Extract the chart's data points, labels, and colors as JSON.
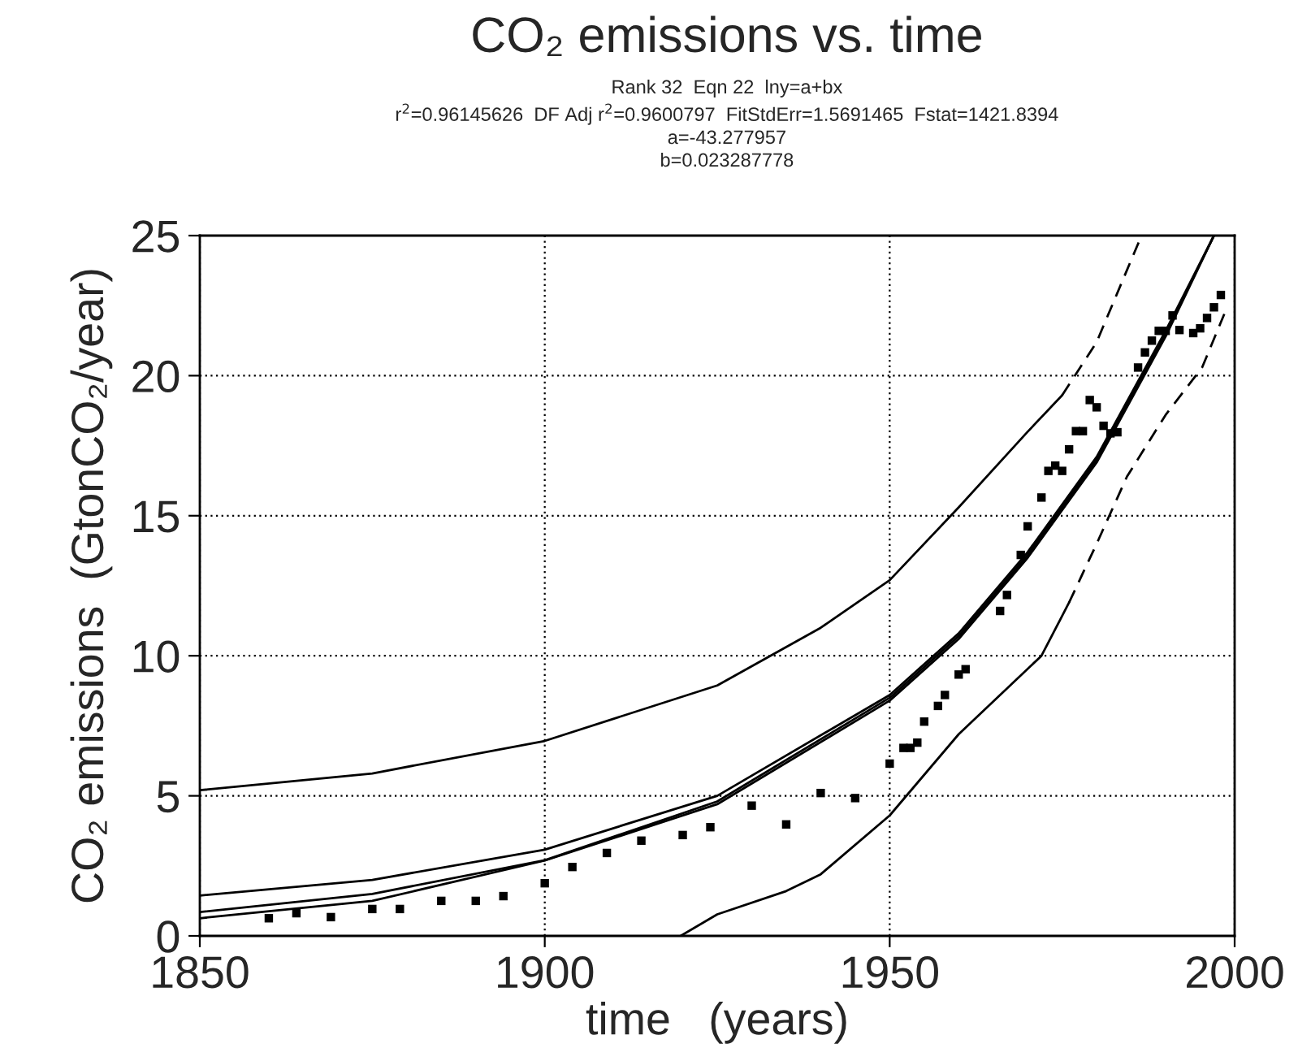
{
  "chart_data": {
    "type": "scatter",
    "title": "CO₂ emissions vs. time",
    "subtitle": "Rank 32  Eqn 22  lny=a+bx\nr$^{2}$=0.96145626  DF Adj r$^{2}$=0.9600797  FitStdErr=1.5691465  Fstat=1421.8394\na=-43.277957\nb=0.023287778",
    "xlabel": "time   (years)",
    "ylabel": "CO₂ emissions  (GtonCO₂/year)",
    "xlim": [
      1850,
      2000
    ],
    "xticks": [
      1850,
      1900,
      1950,
      2000
    ],
    "ylim": [
      0,
      25
    ],
    "yticks": [
      0,
      5,
      10,
      15,
      20,
      25
    ],
    "grid": true,
    "series": [
      {
        "color": "#000000",
        "marker": "square",
        "x": [
          1860,
          1864,
          1869,
          1875,
          1879,
          1885,
          1890,
          1894,
          1900,
          1904,
          1909,
          1914,
          1920,
          1924,
          1930,
          1935,
          1940,
          1945,
          1950,
          1952,
          1953,
          1954,
          1955,
          1957,
          1958,
          1960,
          1961,
          1966,
          1967,
          1969,
          1970,
          1972,
          1973,
          1974,
          1975,
          1976,
          1977,
          1978,
          1979,
          1980,
          1981,
          1982,
          1983,
          1986,
          1987,
          1988,
          1989,
          1990,
          1991,
          1992,
          1994,
          1995,
          1996,
          1997,
          1998
        ],
        "values": [
          0.63,
          0.81,
          0.67,
          0.96,
          0.96,
          1.25,
          1.25,
          1.42,
          1.88,
          2.46,
          2.96,
          3.4,
          3.6,
          3.88,
          4.65,
          3.98,
          5.1,
          4.92,
          6.15,
          6.71,
          6.71,
          6.9,
          7.65,
          8.21,
          8.6,
          9.33,
          9.52,
          11.6,
          12.17,
          13.6,
          14.62,
          15.65,
          16.6,
          16.79,
          16.6,
          17.37,
          18.02,
          18.02,
          19.13,
          18.87,
          18.21,
          17.94,
          17.98,
          20.29,
          20.83,
          21.25,
          21.6,
          21.6,
          22.15,
          21.63,
          21.52,
          21.69,
          22.06,
          22.44,
          22.88
        ]
      },
      {
        "type": "line",
        "color": "#000000",
        "line_style": "solid",
        "x": [
          1850,
          1875,
          1900,
          1925,
          1950,
          1960,
          1970,
          1980,
          1990,
          1997
        ],
        "values": [
          0.85,
          1.5,
          2.7,
          4.8,
          8.5,
          10.7,
          13.6,
          17.0,
          21.5,
          25
        ]
      },
      {
        "type": "line",
        "color": "#000000",
        "line_style": "solid",
        "x": [
          1850,
          1875,
          1900,
          1925,
          1950,
          1960,
          1970,
          1980,
          1990,
          1997
        ],
        "values": [
          1.44,
          2.0,
          3.08,
          5.0,
          8.6,
          10.8,
          13.7,
          17.1,
          21.6,
          25
        ]
      },
      {
        "type": "line",
        "color": "#000000",
        "line_style": "solid",
        "x": [
          1850,
          1875,
          1900,
          1925,
          1950,
          1960,
          1970,
          1980,
          1990,
          1997
        ],
        "values": [
          0.63,
          1.25,
          2.69,
          4.7,
          8.4,
          10.6,
          13.5,
          16.9,
          21.4,
          25
        ]
      },
      {
        "type": "line",
        "color": "#000000",
        "line_style": "solid",
        "x": [
          1850,
          1875,
          1900,
          1925,
          1940,
          1950,
          1960,
          1970,
          1975
        ],
        "values": [
          5.2,
          5.8,
          6.96,
          8.94,
          11.0,
          12.7,
          15.3,
          18.0,
          19.3
        ]
      },
      {
        "type": "line",
        "color": "#000000",
        "line_style": "dashed",
        "x": [
          1975,
          1980,
          1986.5
        ],
        "values": [
          19.3,
          21.2,
          25
        ]
      },
      {
        "type": "line",
        "color": "#000000",
        "line_style": "solid",
        "x": [
          1919.7,
          1925,
          1935,
          1940,
          1950,
          1960,
          1972,
          1976
        ],
        "values": [
          0,
          0.77,
          1.6,
          2.2,
          4.3,
          7.2,
          10.0,
          11.9
        ]
      },
      {
        "type": "line",
        "color": "#000000",
        "line_style": "dashed",
        "x": [
          1976,
          1980,
          1984.4,
          1990,
          1995.3,
          1998.5
        ],
        "values": [
          11.9,
          14.0,
          16.4,
          18.6,
          20.3,
          22.2
        ]
      }
    ]
  }
}
